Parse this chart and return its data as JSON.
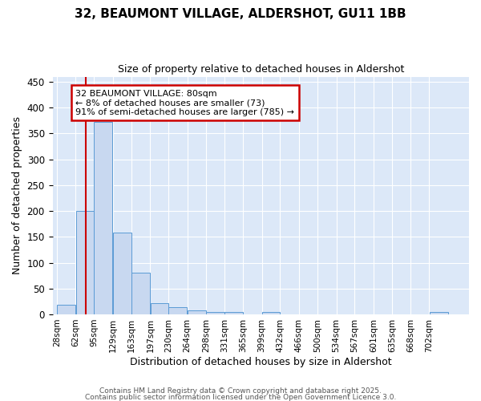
{
  "title": "32, BEAUMONT VILLAGE, ALDERSHOT, GU11 1BB",
  "subtitle": "Size of property relative to detached houses in Aldershot",
  "xlabel": "Distribution of detached houses by size in Aldershot",
  "ylabel": "Number of detached properties",
  "bar_values": [
    18,
    200,
    372,
    158,
    80,
    22,
    14,
    8,
    5,
    5,
    0,
    5,
    0,
    0,
    0,
    0,
    0,
    0,
    0,
    0,
    4
  ],
  "bin_edges": [
    28,
    62,
    95,
    129,
    163,
    197,
    230,
    264,
    298,
    331,
    365,
    399,
    432,
    466,
    500,
    534,
    567,
    601,
    635,
    668,
    702,
    736
  ],
  "bar_color": "#c8d8f0",
  "bar_edge_color": "#5b9bd5",
  "red_line_x": 80,
  "annotation_text": "32 BEAUMONT VILLAGE: 80sqm\n← 8% of detached houses are smaller (73)\n91% of semi-detached houses are larger (785) →",
  "annotation_box_color": "#ffffff",
  "annotation_box_edge": "#cc0000",
  "ylim": [
    0,
    460
  ],
  "yticks": [
    0,
    50,
    100,
    150,
    200,
    250,
    300,
    350,
    400,
    450
  ],
  "ax_background_color": "#dce8f8",
  "fig_background_color": "#ffffff",
  "grid_color": "#ffffff",
  "footer_line1": "Contains HM Land Registry data © Crown copyright and database right 2025.",
  "footer_line2": "Contains public sector information licensed under the Open Government Licence 3.0."
}
